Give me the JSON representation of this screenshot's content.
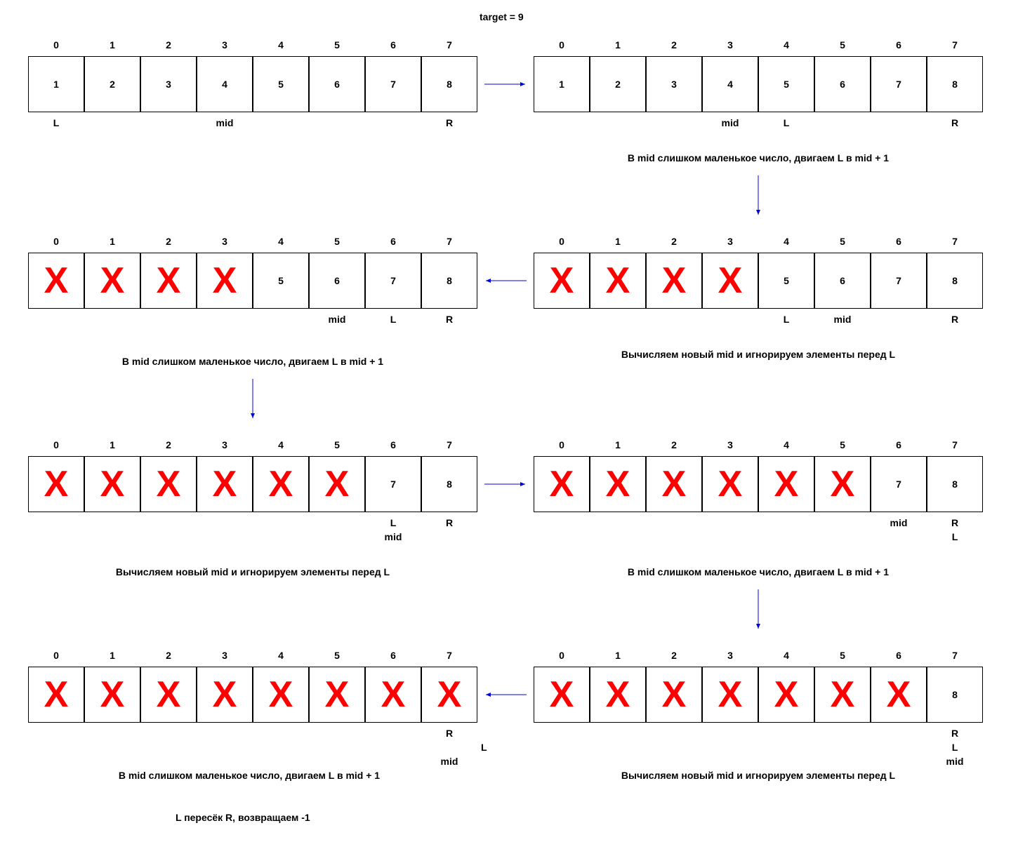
{
  "title": "target = 9",
  "indices": [
    "0",
    "1",
    "2",
    "3",
    "4",
    "5",
    "6",
    "7"
  ],
  "panels": [
    {
      "id": "p1",
      "cells": [
        "1",
        "2",
        "3",
        "4",
        "5",
        "6",
        "7",
        "8"
      ],
      "pointers": [
        [
          "L"
        ],
        [],
        [],
        [
          "mid"
        ],
        [],
        [],
        [],
        [
          "R"
        ]
      ]
    },
    {
      "id": "p2",
      "cells": [
        "1",
        "2",
        "3",
        "4",
        "5",
        "6",
        "7",
        "8"
      ],
      "pointers": [
        [],
        [],
        [],
        [
          "mid"
        ],
        [
          "L"
        ],
        [],
        [],
        [
          "R"
        ]
      ],
      "caption": "В mid слишком маленькое число, двигаем L в mid + 1"
    },
    {
      "id": "p3",
      "cells": [
        "X",
        "X",
        "X",
        "X",
        "5",
        "6",
        "7",
        "8"
      ],
      "pointers": [
        [],
        [],
        [],
        [],
        [
          "L"
        ],
        [
          "mid"
        ],
        [],
        [
          "R"
        ]
      ],
      "caption": "Вычисляем новый mid и игнорируем элементы перед L"
    },
    {
      "id": "p4",
      "cells": [
        "X",
        "X",
        "X",
        "X",
        "5",
        "6",
        "7",
        "8"
      ],
      "pointers": [
        [],
        [],
        [],
        [],
        [],
        [
          "mid"
        ],
        [
          "L"
        ],
        [
          "R"
        ]
      ],
      "caption": "В mid слишком маленькое число, двигаем L в mid + 1"
    },
    {
      "id": "p5",
      "cells": [
        "X",
        "X",
        "X",
        "X",
        "X",
        "X",
        "7",
        "8"
      ],
      "pointers": [
        [],
        [],
        [],
        [],
        [],
        [],
        [
          "L",
          "mid"
        ],
        [
          "R"
        ]
      ],
      "caption": "Вычисляем новый mid и игнорируем элементы перед L"
    },
    {
      "id": "p6",
      "cells": [
        "X",
        "X",
        "X",
        "X",
        "X",
        "X",
        "7",
        "8"
      ],
      "pointers": [
        [],
        [],
        [],
        [],
        [],
        [],
        [
          "mid"
        ],
        [
          "R",
          "L"
        ]
      ],
      "caption": "В mid слишком маленькое число, двигаем L в mid + 1"
    },
    {
      "id": "p7",
      "cells": [
        "X",
        "X",
        "X",
        "X",
        "X",
        "X",
        "X",
        "8"
      ],
      "pointers": [
        [],
        [],
        [],
        [],
        [],
        [],
        [],
        [
          "R",
          "L",
          "mid"
        ]
      ],
      "caption": "Вычисляем новый mid и игнорируем элементы перед L"
    },
    {
      "id": "p8",
      "cells": [
        "X",
        "X",
        "X",
        "X",
        "X",
        "X",
        "X",
        "X"
      ],
      "pointers": [
        [],
        [],
        [],
        [],
        [],
        [],
        [],
        [
          "R",
          "",
          "mid"
        ]
      ],
      "extra_pointer": "L",
      "caption": "В mid слишком маленькое число, двигаем L в mid + 1"
    }
  ],
  "final_note": "L пересёк R, возвращаем -1",
  "colors": {
    "arrow": "#0000dd",
    "cross": "#ff0000",
    "border": "#000000"
  }
}
